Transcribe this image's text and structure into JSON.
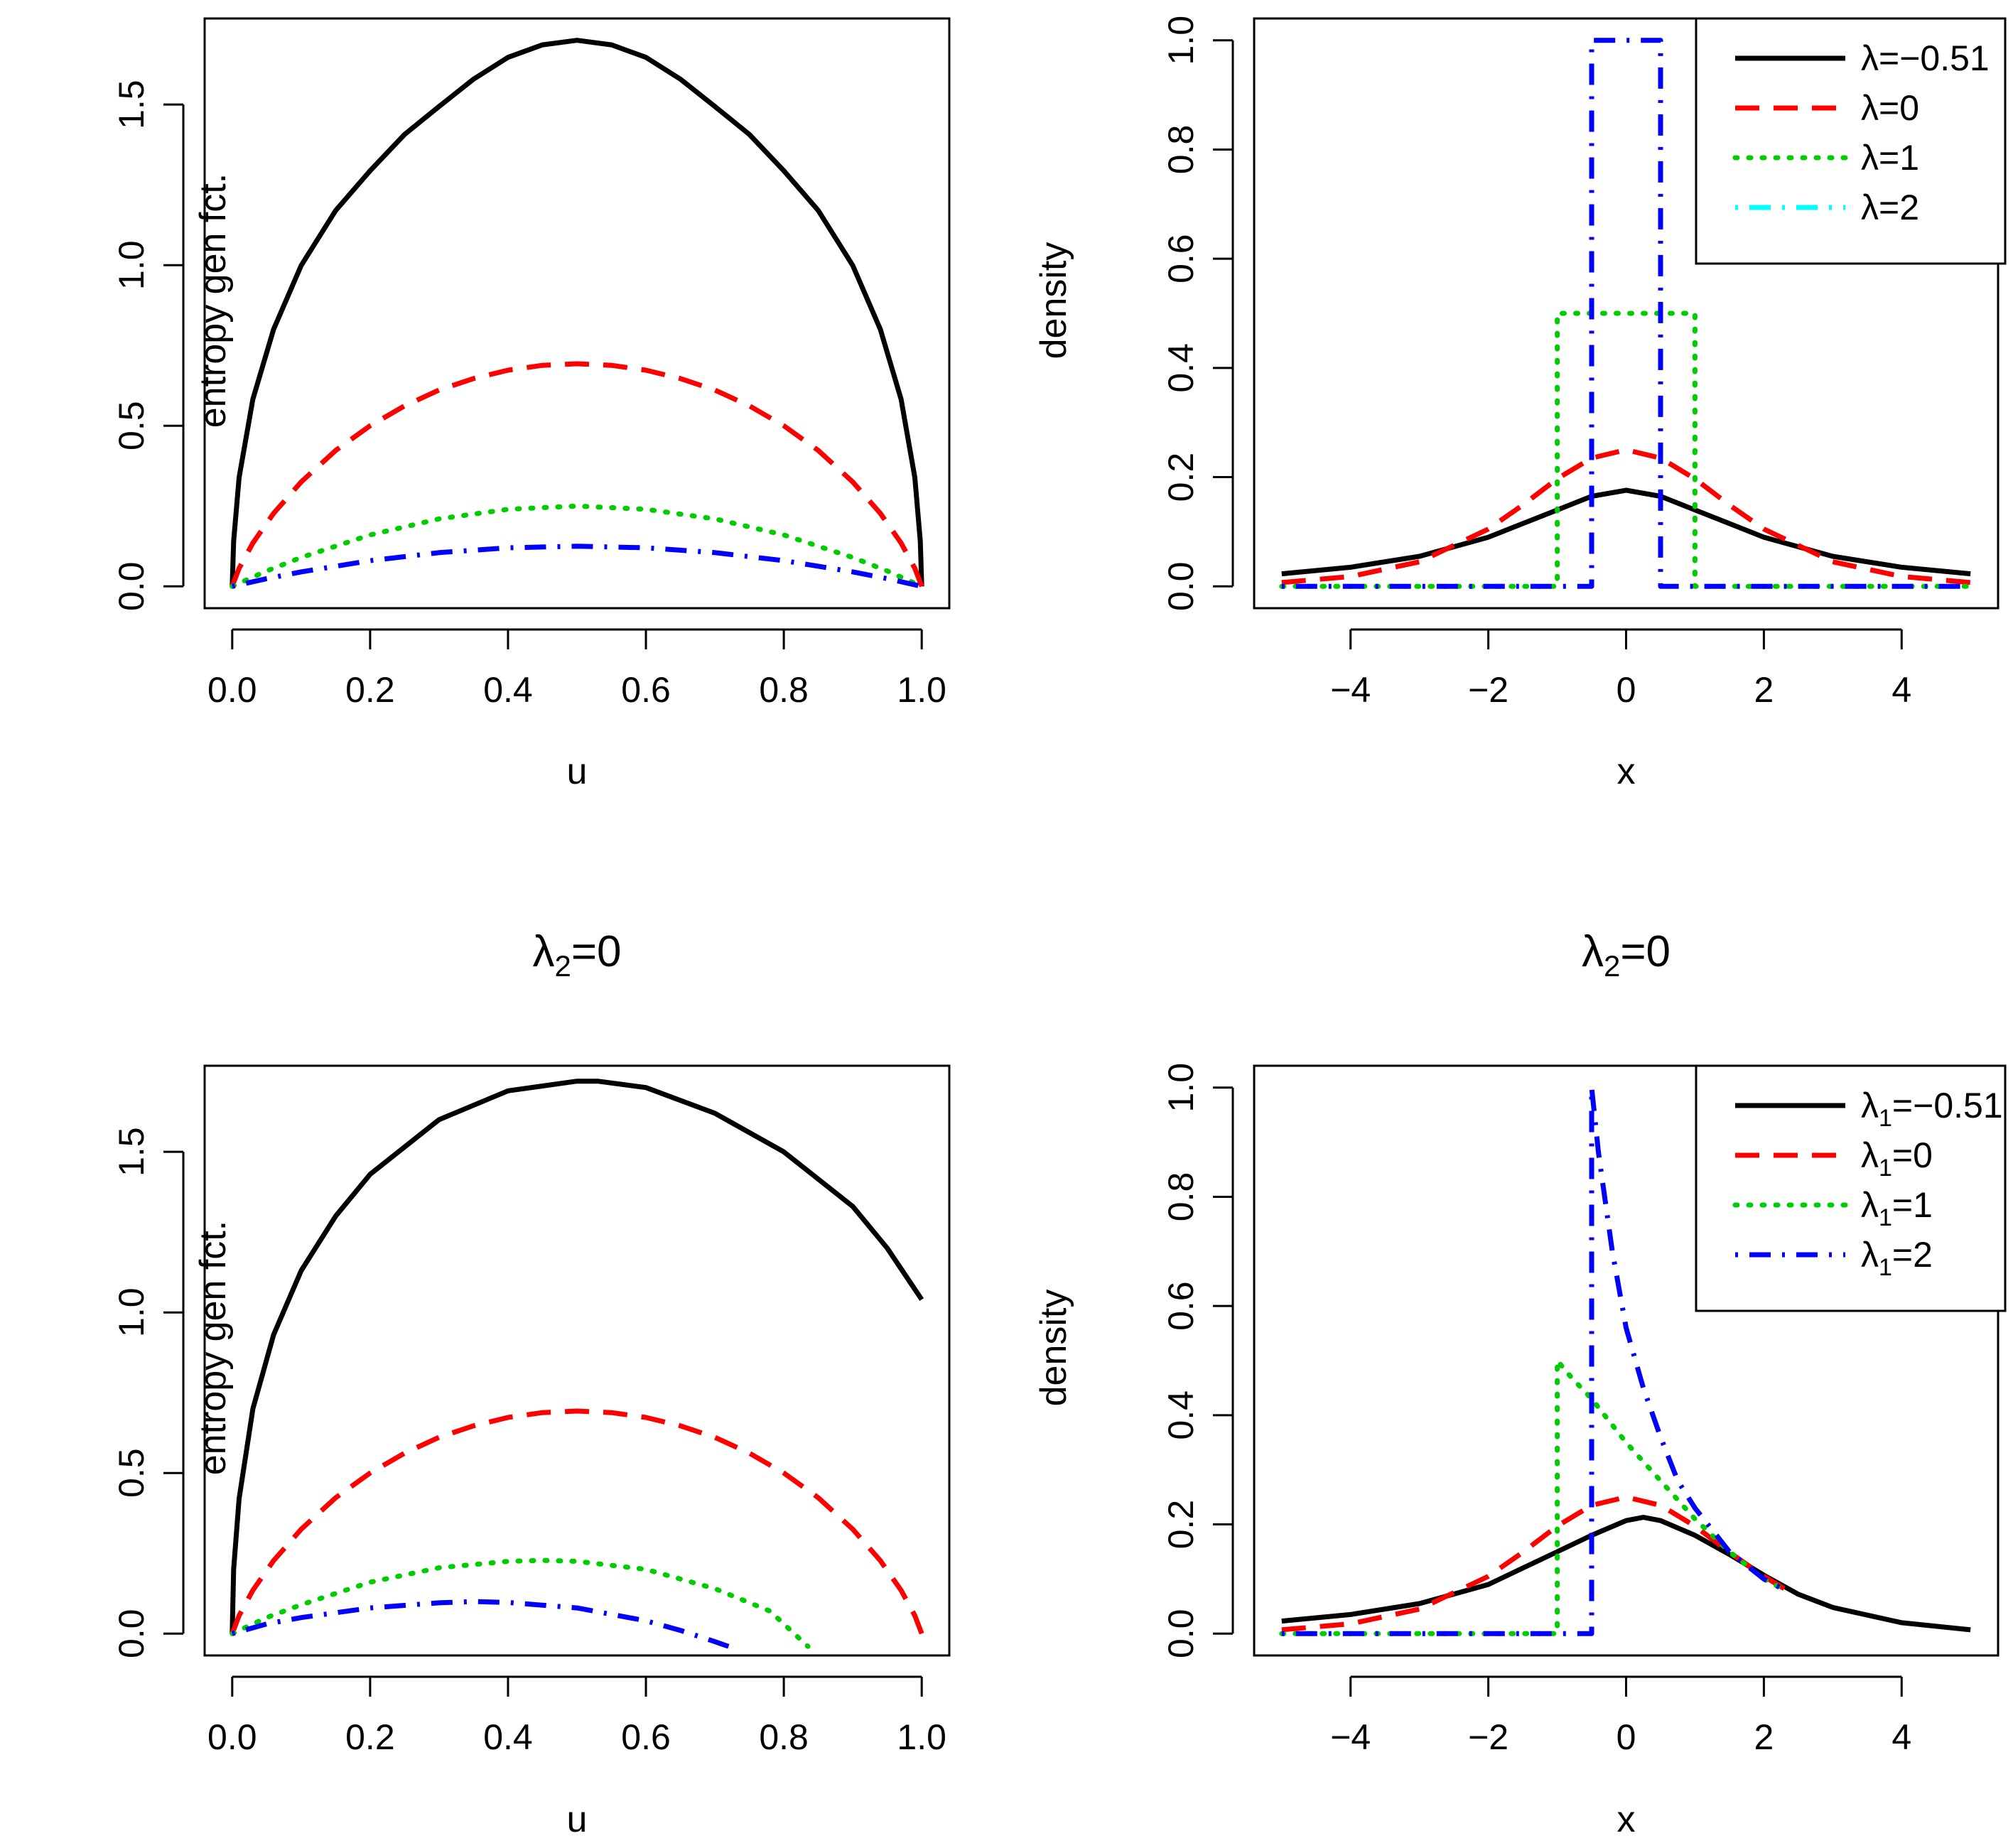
{
  "chart_data": [
    {
      "id": "tl",
      "type": "line",
      "title": "",
      "xlabel": "u",
      "ylabel": "entropy gen fct.",
      "xlim": [
        -0.04,
        1.04
      ],
      "ylim": [
        -0.068,
        1.768
      ],
      "xticks": [
        "0.0",
        "0.2",
        "0.4",
        "0.6",
        "0.8",
        "1.0"
      ],
      "yticks": [
        "0.0",
        "0.5",
        "1.0",
        "1.5"
      ],
      "legend": null,
      "series": [
        {
          "name": "black solid",
          "color": "#000000",
          "dash": "solid",
          "x": [
            0,
            0.002,
            0.01,
            0.03,
            0.06,
            0.1,
            0.15,
            0.2,
            0.25,
            0.3,
            0.35,
            0.4,
            0.45,
            0.5,
            0.55,
            0.6,
            0.65,
            0.7,
            0.75,
            0.8,
            0.85,
            0.9,
            0.94,
            0.97,
            0.99,
            0.998,
            1.0
          ],
          "y": [
            0,
            0.14,
            0.339,
            0.583,
            0.8,
            0.999,
            1.17,
            1.294,
            1.407,
            1.494,
            1.579,
            1.647,
            1.686,
            1.7,
            1.686,
            1.647,
            1.579,
            1.494,
            1.407,
            1.294,
            1.17,
            0.999,
            0.8,
            0.583,
            0.339,
            0.14,
            0
          ]
        },
        {
          "name": "red dashed",
          "color": "#ff0000",
          "dash": "dashed",
          "x": [
            0,
            0.01,
            0.03,
            0.06,
            0.1,
            0.15,
            0.2,
            0.25,
            0.3,
            0.35,
            0.4,
            0.45,
            0.5,
            0.55,
            0.6,
            0.65,
            0.7,
            0.75,
            0.8,
            0.85,
            0.9,
            0.94,
            0.97,
            0.99,
            1.0
          ],
          "y": [
            0,
            0.056,
            0.135,
            0.227,
            0.325,
            0.423,
            0.5,
            0.562,
            0.611,
            0.647,
            0.673,
            0.688,
            0.693,
            0.688,
            0.673,
            0.647,
            0.611,
            0.562,
            0.5,
            0.423,
            0.325,
            0.227,
            0.135,
            0.056,
            0
          ]
        },
        {
          "name": "green dotted",
          "color": "#00cd00",
          "dash": "dotted",
          "x": [
            0,
            0.05,
            0.1,
            0.2,
            0.3,
            0.4,
            0.5,
            0.6,
            0.7,
            0.8,
            0.9,
            0.95,
            1.0
          ],
          "y": [
            0,
            0.048,
            0.09,
            0.16,
            0.21,
            0.24,
            0.25,
            0.24,
            0.21,
            0.16,
            0.09,
            0.048,
            0
          ]
        },
        {
          "name": "blue dotdash",
          "color": "#0000ff",
          "dash": "dotdash",
          "x": [
            0,
            0.05,
            0.1,
            0.2,
            0.3,
            0.4,
            0.5,
            0.6,
            0.7,
            0.8,
            0.9,
            0.95,
            1.0
          ],
          "y": [
            0,
            0.024,
            0.045,
            0.08,
            0.105,
            0.12,
            0.125,
            0.12,
            0.105,
            0.08,
            0.045,
            0.024,
            0
          ]
        }
      ]
    },
    {
      "id": "tr",
      "type": "line",
      "title": "",
      "xlabel": "x",
      "ylabel": "density",
      "xlim": [
        -5.4,
        5.4
      ],
      "ylim": [
        -0.04,
        1.04
      ],
      "xticks": [
        "−4",
        "−2",
        "0",
        "2",
        "4"
      ],
      "xtick_values": [
        -4,
        -2,
        0,
        2,
        4
      ],
      "yticks": [
        "0.0",
        "0.2",
        "0.4",
        "0.6",
        "0.8",
        "1.0"
      ],
      "legend": {
        "position": "top-right",
        "entries": [
          {
            "label": "λ=−0.51",
            "color": "#000000",
            "dash": "solid"
          },
          {
            "label": "λ=0",
            "color": "#ff0000",
            "dash": "dashed"
          },
          {
            "label": "λ=1",
            "color": "#00cd00",
            "dash": "dotted"
          },
          {
            "label": "λ=2",
            "color": "#00ffff",
            "dash": "dotdash"
          }
        ]
      },
      "series": [
        {
          "name": "black solid",
          "color": "#000000",
          "dash": "solid",
          "x": [
            -5,
            -4,
            -3,
            -2,
            -1.5,
            -1,
            -0.5,
            0,
            0.5,
            1,
            1.5,
            2,
            3,
            4,
            5
          ],
          "y": [
            0.023,
            0.035,
            0.055,
            0.09,
            0.115,
            0.14,
            0.165,
            0.176,
            0.165,
            0.14,
            0.115,
            0.09,
            0.055,
            0.035,
            0.023
          ]
        },
        {
          "name": "red dashed",
          "color": "#ff0000",
          "dash": "dashed",
          "x": [
            -5,
            -4,
            -3,
            -2,
            -1.5,
            -1,
            -0.5,
            0,
            0.5,
            1,
            1.5,
            2,
            3,
            4,
            5
          ],
          "y": [
            0.007,
            0.018,
            0.045,
            0.105,
            0.149,
            0.197,
            0.235,
            0.25,
            0.235,
            0.197,
            0.149,
            0.105,
            0.045,
            0.018,
            0.007
          ]
        },
        {
          "name": "green dotted",
          "color": "#00cd00",
          "dash": "dotted",
          "x": [
            -5,
            -1,
            -1,
            1,
            1,
            5
          ],
          "y": [
            0,
            0,
            0.5,
            0.5,
            0,
            0
          ]
        },
        {
          "name": "blue dotdash",
          "color": "#0000ff",
          "dash": "dotdash",
          "x": [
            -5,
            -0.5,
            -0.5,
            0.5,
            0.5,
            5
          ],
          "y": [
            0,
            0,
            1,
            1,
            0,
            0
          ]
        }
      ]
    },
    {
      "id": "bl",
      "type": "line",
      "title": "λ2=0",
      "title_main": "λ",
      "title_sub": "2",
      "title_rest": "=0",
      "xlabel": "u",
      "ylabel": "entropy gen fct.",
      "xlim": [
        -0.04,
        1.04
      ],
      "ylim": [
        -0.068,
        1.768
      ],
      "xticks": [
        "0.0",
        "0.2",
        "0.4",
        "0.6",
        "0.8",
        "1.0"
      ],
      "yticks": [
        "0.0",
        "0.5",
        "1.0",
        "1.5"
      ],
      "legend": null,
      "series": [
        {
          "name": "black solid",
          "color": "#000000",
          "dash": "solid",
          "x": [
            0,
            0.002,
            0.01,
            0.03,
            0.06,
            0.1,
            0.15,
            0.2,
            0.3,
            0.4,
            0.5,
            0.53,
            0.6,
            0.7,
            0.8,
            0.9,
            0.95,
            1.0
          ],
          "y": [
            0,
            0.2,
            0.42,
            0.7,
            0.93,
            1.13,
            1.3,
            1.43,
            1.6,
            1.69,
            1.72,
            1.72,
            1.7,
            1.62,
            1.5,
            1.33,
            1.2,
            1.04
          ]
        },
        {
          "name": "red dashed",
          "color": "#ff0000",
          "dash": "dashed",
          "x": [
            0,
            0.01,
            0.03,
            0.06,
            0.1,
            0.15,
            0.2,
            0.25,
            0.3,
            0.35,
            0.4,
            0.45,
            0.5,
            0.55,
            0.6,
            0.65,
            0.7,
            0.75,
            0.8,
            0.85,
            0.9,
            0.94,
            0.97,
            0.99,
            1.0
          ],
          "y": [
            0,
            0.056,
            0.135,
            0.227,
            0.325,
            0.423,
            0.5,
            0.562,
            0.611,
            0.647,
            0.673,
            0.688,
            0.693,
            0.688,
            0.673,
            0.647,
            0.611,
            0.562,
            0.5,
            0.423,
            0.325,
            0.227,
            0.135,
            0.056,
            0
          ]
        },
        {
          "name": "green dotted",
          "color": "#00cd00",
          "dash": "dotted",
          "x": [
            0,
            0.05,
            0.1,
            0.2,
            0.3,
            0.4,
            0.45,
            0.5,
            0.6,
            0.7,
            0.78,
            0.835
          ],
          "y": [
            0,
            0.05,
            0.09,
            0.16,
            0.205,
            0.225,
            0.228,
            0.225,
            0.2,
            0.14,
            0.07,
            -0.04
          ]
        },
        {
          "name": "blue dotdash",
          "color": "#0000ff",
          "dash": "dotdash",
          "x": [
            0,
            0.05,
            0.1,
            0.2,
            0.3,
            0.35,
            0.4,
            0.5,
            0.6,
            0.65,
            0.7,
            0.72
          ],
          "y": [
            0,
            0.03,
            0.05,
            0.08,
            0.096,
            0.1,
            0.097,
            0.08,
            0.04,
            0.01,
            -0.025,
            -0.04
          ]
        }
      ]
    },
    {
      "id": "br",
      "type": "line",
      "title": "λ2=0",
      "title_main": "λ",
      "title_sub": "2",
      "title_rest": "=0",
      "xlabel": "x",
      "ylabel": "density",
      "xlim": [
        -5.4,
        5.4
      ],
      "ylim": [
        -0.04,
        1.04
      ],
      "xticks": [
        "−4",
        "−2",
        "0",
        "2",
        "4"
      ],
      "xtick_values": [
        -4,
        -2,
        0,
        2,
        4
      ],
      "yticks": [
        "0.0",
        "0.2",
        "0.4",
        "0.6",
        "0.8",
        "1.0"
      ],
      "legend": {
        "position": "top-right",
        "entries": [
          {
            "label": "λ1=−0.51",
            "main": "λ",
            "sub": "1",
            "rest": "=−0.51",
            "color": "#000000",
            "dash": "solid"
          },
          {
            "label": "λ1=0",
            "main": "λ",
            "sub": "1",
            "rest": "=0",
            "color": "#ff0000",
            "dash": "dashed"
          },
          {
            "label": "λ1=1",
            "main": "λ",
            "sub": "1",
            "rest": "=1",
            "color": "#00cd00",
            "dash": "dotted"
          },
          {
            "label": "λ1=2",
            "main": "λ",
            "sub": "1",
            "rest": "=2",
            "color": "#0000ff",
            "dash": "dotdash"
          }
        ]
      },
      "series": [
        {
          "name": "black solid",
          "color": "#000000",
          "dash": "solid",
          "x": [
            -5,
            -4,
            -3,
            -2,
            -1.5,
            -1,
            -0.5,
            0,
            0.25,
            0.5,
            1,
            1.5,
            2,
            2.5,
            3,
            4,
            5
          ],
          "y": [
            0.023,
            0.035,
            0.055,
            0.09,
            0.12,
            0.15,
            0.18,
            0.207,
            0.213,
            0.207,
            0.18,
            0.145,
            0.107,
            0.072,
            0.048,
            0.02,
            0.007
          ]
        },
        {
          "name": "red dashed",
          "color": "#ff0000",
          "dash": "dashed",
          "x": [
            -5,
            -4,
            -3,
            -2,
            -1.5,
            -1,
            -0.5,
            0,
            0.5,
            1,
            1.5,
            2,
            2.3
          ],
          "y": [
            0.007,
            0.018,
            0.045,
            0.105,
            0.149,
            0.197,
            0.235,
            0.25,
            0.235,
            0.197,
            0.149,
            0.105,
            0.082
          ]
        },
        {
          "name": "green dotted",
          "color": "#00cd00",
          "dash": "dotted",
          "x": [
            -5,
            -1,
            -1,
            -0.8,
            -0.5,
            0,
            0.5,
            1,
            1.5,
            2,
            2.3
          ],
          "y": [
            0,
            0,
            0.5,
            0.47,
            0.43,
            0.35,
            0.28,
            0.21,
            0.15,
            0.1,
            0.08
          ]
        },
        {
          "name": "blue dotdash",
          "color": "#0000ff",
          "dash": "dotdash",
          "x": [
            -5,
            -0.5,
            -0.5,
            -0.4,
            -0.2,
            0,
            0.25,
            0.5,
            0.75,
            1,
            1.5,
            2,
            2.3
          ],
          "y": [
            0,
            0,
            1.0,
            0.88,
            0.7,
            0.56,
            0.45,
            0.36,
            0.28,
            0.23,
            0.15,
            0.1,
            0.08
          ]
        }
      ]
    }
  ]
}
